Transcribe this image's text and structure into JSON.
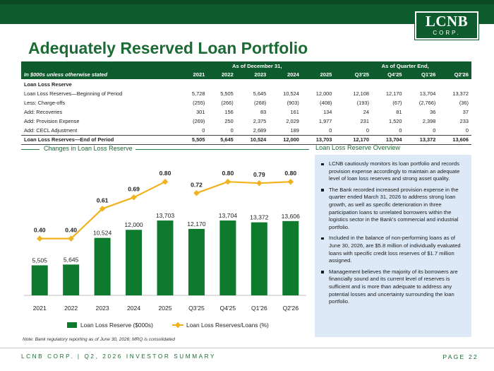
{
  "brand": {
    "logo_line1": "LCNB",
    "logo_line2": "CORP.",
    "green": "#0e5b2e",
    "bar_green": "#0e7a2e",
    "ratio_gold": "#f0b31e"
  },
  "page_title": "Adequately Reserved Loan Portfolio",
  "table": {
    "group_year": "As of December 31,",
    "group_quarter": "As of Quarter End,",
    "units_label": "In $000s unless otherwise stated",
    "columns": [
      "2021",
      "2022",
      "2023",
      "2024",
      "2025",
      "Q3'25",
      "Q4'25",
      "Q1'26",
      "Q2'26"
    ],
    "section_label": "Loan Loss Reserve",
    "rows": [
      {
        "label": "Loan Loss Reserves—Beginning of Period",
        "values": [
          "5,728",
          "5,505",
          "5,645",
          "10,524",
          "12,000",
          "12,108",
          "12,170",
          "13,704",
          "13,372"
        ]
      },
      {
        "label": "Less: Charge-offs",
        "values": [
          "(255)",
          "(266)",
          "(268)",
          "(903)",
          "(408)",
          "(193)",
          "(67)",
          "(2,766)",
          "(36)"
        ]
      },
      {
        "label": "Add: Recoveries",
        "values": [
          "301",
          "156",
          "83",
          "161",
          "134",
          "24",
          "81",
          "36",
          "37"
        ]
      },
      {
        "label": "Add: Provision Expense",
        "values": [
          "(269)",
          "250",
          "2,375",
          "2,029",
          "1,977",
          "231",
          "1,520",
          "2,398",
          "233"
        ]
      },
      {
        "label": "Add: CECL Adjustment",
        "values": [
          "0",
          "0",
          "2,689",
          "189",
          "0",
          "0",
          "0",
          "0",
          "0"
        ]
      }
    ],
    "total": {
      "label": "Loan Loss Reserves—End of Period",
      "values": [
        "5,505",
        "5,645",
        "10,524",
        "12,000",
        "13,703",
        "12,170",
        "13,704",
        "13,372",
        "13,606"
      ]
    }
  },
  "chart_data": {
    "type": "bar",
    "title": "Changes in Loan Loss Reserve",
    "categories": [
      "2021",
      "2022",
      "2023",
      "2024",
      "2025",
      "Q3'25",
      "Q4'25",
      "Q1'26",
      "Q2'26"
    ],
    "series": [
      {
        "name": "Loan Loss Reserve ($000s)",
        "kind": "bar",
        "values": [
          5505,
          5645,
          10524,
          12000,
          13703,
          12170,
          13704,
          13372,
          13606
        ],
        "labels": [
          "5,505",
          "5,645",
          "10,524",
          "12,000",
          "13,703",
          "12,170",
          "13,704",
          "13,372",
          "13,606"
        ]
      },
      {
        "name": "Loan Loss Reserves/Loans (%)",
        "kind": "line",
        "values": [
          0.4,
          0.4,
          0.61,
          0.69,
          0.8,
          0.72,
          0.8,
          0.79,
          0.8
        ],
        "labels": [
          "0.40",
          "0.40",
          "0.61",
          "0.69",
          "0.80",
          "0.72",
          "0.80",
          "0.79",
          "0.80"
        ],
        "segments": [
          [
            0,
            4
          ],
          [
            5,
            8
          ]
        ]
      }
    ],
    "bar_ylim": [
      0,
      26000
    ],
    "line_ylim": [
      0,
      1.0
    ],
    "grid": false,
    "legend_position": "bottom"
  },
  "side": {
    "title": "Loan Loss Reserve Overview",
    "bullets": [
      "LCNB cautiously monitors its loan portfolio and records provision expense accordingly to maintain an adequate level of loan loss reserves and strong asset quality.",
      "The Bank recorded increased provision expense in the quarter ended March 31, 2026 to address strong loan growth, as well as specific deterioration in three participation loans to unrelated borrowers within the logistics sector in the Bank’s commercial and industrial portfolio.",
      "Included in the balance of non-performing loans as of June 30, 2026, are $5.8 million of individually evaluated loans with specific credit loss reserves of $1.7 million assigned.",
      "Management believes the majority of its borrowers are financially sound and its current level of reserves is sufficient and is more than adequate to address any potential losses and uncertainty surrounding the loan portfolio."
    ]
  },
  "note": "Note:    Bank regulatory reporting as of June 30, 2026; MRQ is consolidated",
  "footer": {
    "left": "LCNB CORP. | Q2, 2026 INVESTOR SUMMARY",
    "right": "PAGE 22"
  }
}
